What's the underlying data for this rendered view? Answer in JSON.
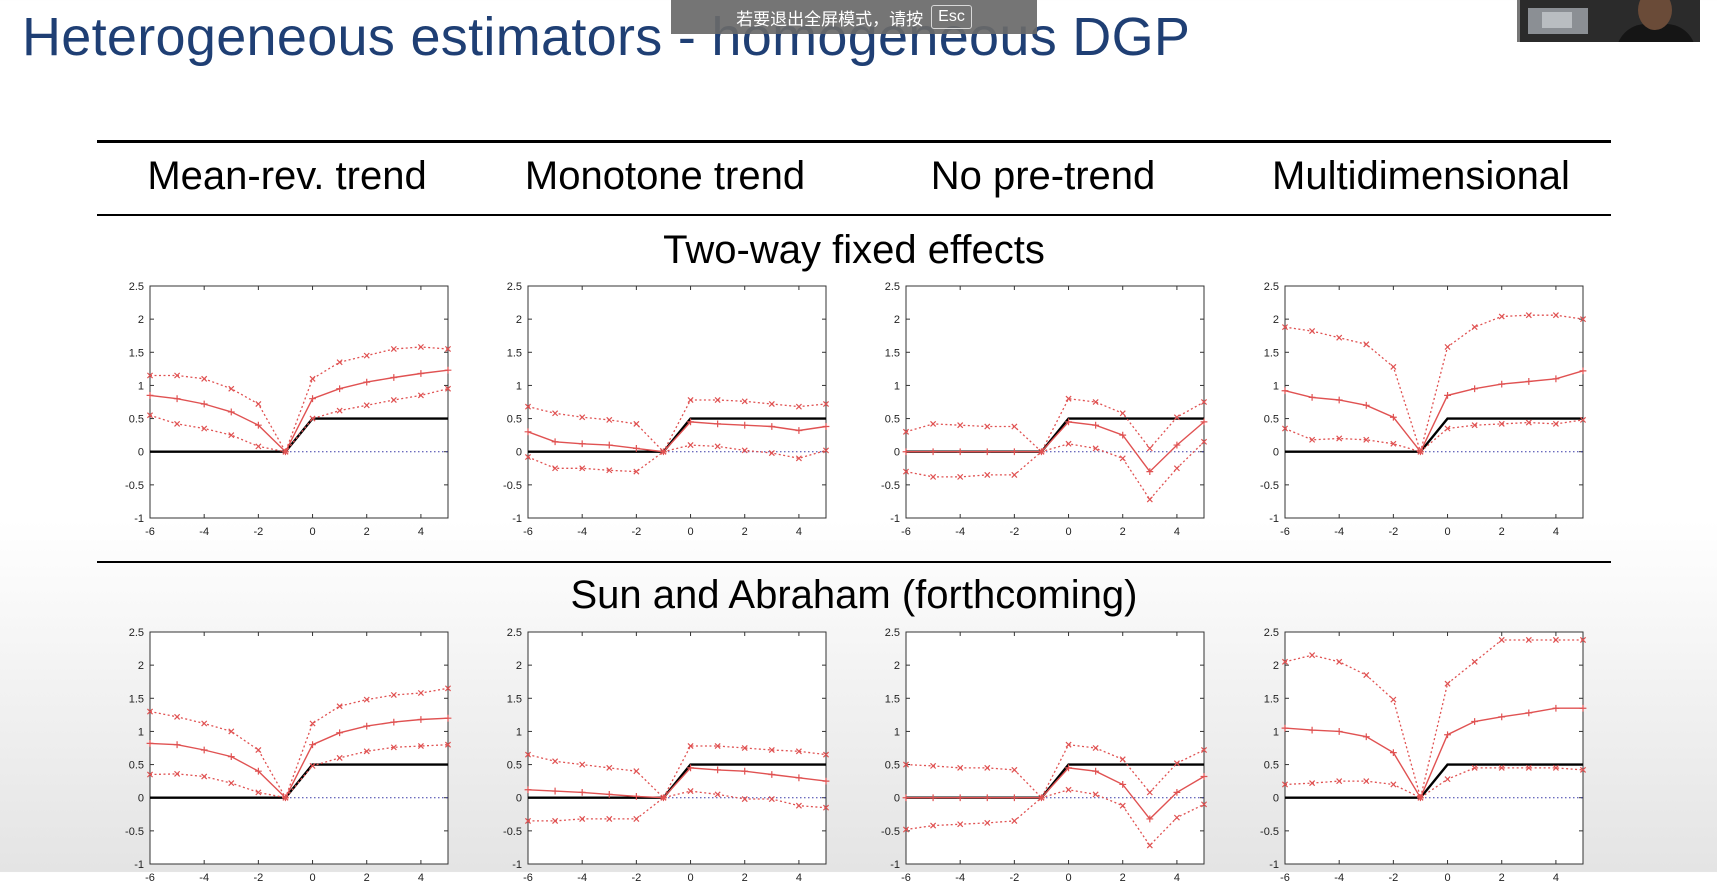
{
  "slide": {
    "title": "Heterogeneous estimators - homogeneous DGP"
  },
  "fullscreen_banner": {
    "text": "若要退出全屏模式，请按",
    "key": "Esc"
  },
  "table": {
    "column_headers": [
      "Mean-rev. trend",
      "Monotone trend",
      "No pre-trend",
      "Multidimensional"
    ],
    "row_labels": [
      "Two-way fixed effects",
      "Sun and Abraham (forthcoming)"
    ]
  },
  "colors": {
    "title": "#1f3f74",
    "estimate": "#e05252",
    "true_effect": "#000000",
    "zero_line": "#3a3aa8"
  },
  "chart_data": [
    {
      "type": "line",
      "row": "Two-way fixed effects",
      "column": "Mean-rev. trend",
      "xlim": [
        -6,
        5
      ],
      "ylim": [
        -1,
        2.5
      ],
      "xticks": [
        -6,
        -4,
        -2,
        0,
        2,
        4
      ],
      "yticks": [
        -1,
        -0.5,
        0,
        0.5,
        1,
        1.5,
        2,
        2.5
      ],
      "x": [
        -6,
        -5,
        -4,
        -3,
        -2,
        -1,
        0,
        1,
        2,
        3,
        4,
        5
      ],
      "truth": [
        0,
        0,
        0,
        0,
        0,
        0,
        0.5,
        0.5,
        0.5,
        0.5,
        0.5,
        0.5
      ],
      "estimate": [
        0.85,
        0.8,
        0.72,
        0.6,
        0.4,
        0,
        0.8,
        0.95,
        1.05,
        1.12,
        1.18,
        1.23
      ],
      "upper": [
        1.15,
        1.15,
        1.1,
        0.95,
        0.72,
        0,
        1.1,
        1.35,
        1.45,
        1.55,
        1.58,
        1.55
      ],
      "lower": [
        0.55,
        0.42,
        0.35,
        0.25,
        0.08,
        0,
        0.5,
        0.62,
        0.7,
        0.78,
        0.85,
        0.95
      ]
    },
    {
      "type": "line",
      "row": "Two-way fixed effects",
      "column": "Monotone trend",
      "xlim": [
        -6,
        5
      ],
      "ylim": [
        -1,
        2.5
      ],
      "xticks": [
        -6,
        -4,
        -2,
        0,
        2,
        4
      ],
      "yticks": [
        -1,
        -0.5,
        0,
        0.5,
        1,
        1.5,
        2,
        2.5
      ],
      "x": [
        -6,
        -5,
        -4,
        -3,
        -2,
        -1,
        0,
        1,
        2,
        3,
        4,
        5
      ],
      "truth": [
        0,
        0,
        0,
        0,
        0,
        0,
        0.5,
        0.5,
        0.5,
        0.5,
        0.5,
        0.5
      ],
      "estimate": [
        0.3,
        0.15,
        0.12,
        0.1,
        0.05,
        0,
        0.45,
        0.42,
        0.4,
        0.38,
        0.32,
        0.38
      ],
      "upper": [
        0.68,
        0.58,
        0.52,
        0.48,
        0.42,
        0,
        0.78,
        0.78,
        0.76,
        0.72,
        0.68,
        0.72
      ],
      "lower": [
        -0.08,
        -0.25,
        -0.25,
        -0.28,
        -0.3,
        0,
        0.1,
        0.08,
        0.02,
        -0.02,
        -0.1,
        0.02
      ]
    },
    {
      "type": "line",
      "row": "Two-way fixed effects",
      "column": "No pre-trend",
      "xlim": [
        -6,
        5
      ],
      "ylim": [
        -1,
        2.5
      ],
      "xticks": [
        -6,
        -4,
        -2,
        0,
        2,
        4
      ],
      "yticks": [
        -1,
        -0.5,
        0,
        0.5,
        1,
        1.5,
        2,
        2.5
      ],
      "x": [
        -6,
        -5,
        -4,
        -3,
        -2,
        -1,
        0,
        1,
        2,
        3,
        4,
        5
      ],
      "truth": [
        0,
        0,
        0,
        0,
        0,
        0,
        0.5,
        0.5,
        0.5,
        0.5,
        0.5,
        0.5
      ],
      "estimate": [
        0,
        0,
        0,
        0,
        0,
        0,
        0.45,
        0.4,
        0.25,
        -0.3,
        0.1,
        0.45
      ],
      "upper": [
        0.3,
        0.42,
        0.4,
        0.38,
        0.38,
        0,
        0.8,
        0.75,
        0.58,
        0.05,
        0.52,
        0.75
      ],
      "lower": [
        -0.3,
        -0.38,
        -0.38,
        -0.35,
        -0.35,
        0,
        0.12,
        0.05,
        -0.1,
        -0.72,
        -0.25,
        0.15
      ]
    },
    {
      "type": "line",
      "row": "Two-way fixed effects",
      "column": "Multidimensional",
      "xlim": [
        -6,
        5
      ],
      "ylim": [
        -1,
        2.5
      ],
      "xticks": [
        -6,
        -4,
        -2,
        0,
        2,
        4
      ],
      "yticks": [
        -1,
        -0.5,
        0,
        0.5,
        1,
        1.5,
        2,
        2.5
      ],
      "x": [
        -6,
        -5,
        -4,
        -3,
        -2,
        -1,
        0,
        1,
        2,
        3,
        4,
        5
      ],
      "truth": [
        0,
        0,
        0,
        0,
        0,
        0,
        0.5,
        0.5,
        0.5,
        0.5,
        0.5,
        0.5
      ],
      "estimate": [
        0.92,
        0.82,
        0.78,
        0.7,
        0.52,
        0,
        0.85,
        0.95,
        1.02,
        1.06,
        1.1,
        1.22
      ],
      "upper": [
        1.88,
        1.82,
        1.72,
        1.62,
        1.28,
        0,
        1.58,
        1.88,
        2.04,
        2.06,
        2.06,
        2.0
      ],
      "lower": [
        0.35,
        0.18,
        0.2,
        0.18,
        0.12,
        0,
        0.35,
        0.4,
        0.42,
        0.44,
        0.42,
        0.48
      ]
    },
    {
      "type": "line",
      "row": "Sun and Abraham (forthcoming)",
      "column": "Mean-rev. trend",
      "xlim": [
        -6,
        5
      ],
      "ylim": [
        -1,
        2.5
      ],
      "xticks": [
        -6,
        -4,
        -2,
        0,
        2,
        4
      ],
      "yticks": [
        -1,
        -0.5,
        0,
        0.5,
        1,
        1.5,
        2,
        2.5
      ],
      "x": [
        -6,
        -5,
        -4,
        -3,
        -2,
        -1,
        0,
        1,
        2,
        3,
        4,
        5
      ],
      "truth": [
        0,
        0,
        0,
        0,
        0,
        0,
        0.5,
        0.5,
        0.5,
        0.5,
        0.5,
        0.5
      ],
      "estimate": [
        0.82,
        0.8,
        0.72,
        0.62,
        0.4,
        0,
        0.8,
        0.98,
        1.08,
        1.14,
        1.18,
        1.2
      ],
      "upper": [
        1.3,
        1.22,
        1.12,
        1.0,
        0.72,
        0,
        1.12,
        1.38,
        1.48,
        1.55,
        1.58,
        1.65
      ],
      "lower": [
        0.35,
        0.36,
        0.32,
        0.22,
        0.08,
        0,
        0.48,
        0.6,
        0.7,
        0.76,
        0.78,
        0.8
      ]
    },
    {
      "type": "line",
      "row": "Sun and Abraham (forthcoming)",
      "column": "Monotone trend",
      "xlim": [
        -6,
        5
      ],
      "ylim": [
        -1,
        2.5
      ],
      "xticks": [
        -6,
        -4,
        -2,
        0,
        2,
        4
      ],
      "yticks": [
        -1,
        -0.5,
        0,
        0.5,
        1,
        1.5,
        2,
        2.5
      ],
      "x": [
        -6,
        -5,
        -4,
        -3,
        -2,
        -1,
        0,
        1,
        2,
        3,
        4,
        5
      ],
      "truth": [
        0,
        0,
        0,
        0,
        0,
        0,
        0.5,
        0.5,
        0.5,
        0.5,
        0.5,
        0.5
      ],
      "estimate": [
        0.12,
        0.1,
        0.08,
        0.05,
        0.02,
        0,
        0.45,
        0.42,
        0.4,
        0.35,
        0.3,
        0.25
      ],
      "upper": [
        0.65,
        0.55,
        0.5,
        0.45,
        0.4,
        0,
        0.78,
        0.78,
        0.75,
        0.72,
        0.7,
        0.65
      ],
      "lower": [
        -0.35,
        -0.35,
        -0.32,
        -0.32,
        -0.32,
        0,
        0.1,
        0.05,
        -0.02,
        -0.02,
        -0.12,
        -0.15
      ]
    },
    {
      "type": "line",
      "row": "Sun and Abraham (forthcoming)",
      "column": "No pre-trend",
      "xlim": [
        -6,
        5
      ],
      "ylim": [
        -1,
        2.5
      ],
      "xticks": [
        -6,
        -4,
        -2,
        0,
        2,
        4
      ],
      "yticks": [
        -1,
        -0.5,
        0,
        0.5,
        1,
        1.5,
        2,
        2.5
      ],
      "x": [
        -6,
        -5,
        -4,
        -3,
        -2,
        -1,
        0,
        1,
        2,
        3,
        4,
        5
      ],
      "truth": [
        0,
        0,
        0,
        0,
        0,
        0,
        0.5,
        0.5,
        0.5,
        0.5,
        0.5,
        0.5
      ],
      "estimate": [
        0,
        0,
        0,
        0,
        0,
        0,
        0.45,
        0.4,
        0.2,
        -0.32,
        0.08,
        0.32
      ],
      "upper": [
        0.5,
        0.48,
        0.45,
        0.45,
        0.42,
        0,
        0.8,
        0.75,
        0.58,
        0.08,
        0.52,
        0.72
      ],
      "lower": [
        -0.48,
        -0.42,
        -0.4,
        -0.38,
        -0.35,
        0,
        0.12,
        0.05,
        -0.12,
        -0.72,
        -0.3,
        -0.1
      ]
    },
    {
      "type": "line",
      "row": "Sun and Abraham (forthcoming)",
      "column": "Multidimensional",
      "xlim": [
        -6,
        5
      ],
      "ylim": [
        -1,
        2.5
      ],
      "xticks": [
        -6,
        -4,
        -2,
        0,
        2,
        4
      ],
      "yticks": [
        -1,
        -0.5,
        0,
        0.5,
        1,
        1.5,
        2,
        2.5
      ],
      "x": [
        -6,
        -5,
        -4,
        -3,
        -2,
        -1,
        0,
        1,
        2,
        3,
        4,
        5
      ],
      "truth": [
        0,
        0,
        0,
        0,
        0,
        0,
        0.5,
        0.5,
        0.5,
        0.5,
        0.5,
        0.5
      ],
      "estimate": [
        1.05,
        1.02,
        1.0,
        0.92,
        0.68,
        0,
        0.95,
        1.15,
        1.22,
        1.28,
        1.35,
        1.35
      ],
      "upper": [
        2.05,
        2.15,
        2.05,
        1.85,
        1.48,
        0,
        1.72,
        2.05,
        2.38,
        2.38,
        2.38,
        2.38
      ],
      "lower": [
        0.2,
        0.22,
        0.25,
        0.25,
        0.2,
        0,
        0.28,
        0.45,
        0.45,
        0.45,
        0.45,
        0.42
      ]
    }
  ]
}
